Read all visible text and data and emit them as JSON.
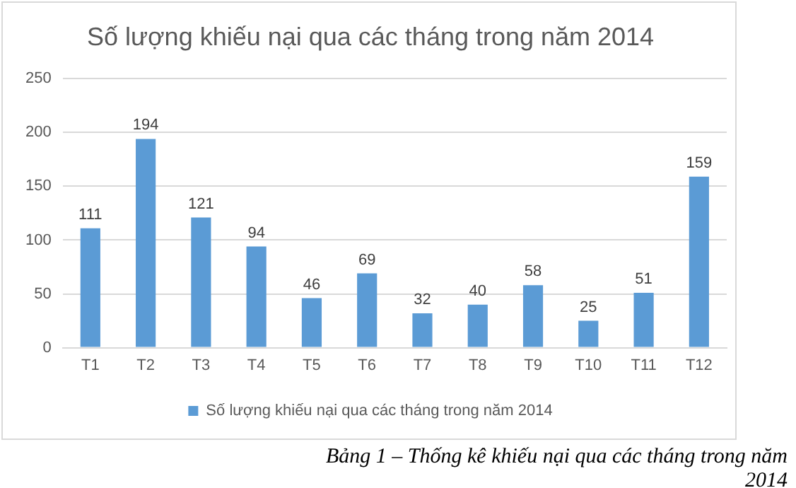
{
  "chart_data": {
    "type": "bar",
    "title": "Số lượng khiếu nại qua các tháng trong năm 2014",
    "categories": [
      "T1",
      "T2",
      "T3",
      "T4",
      "T5",
      "T6",
      "T7",
      "T8",
      "T9",
      "T10",
      "T11",
      "T12"
    ],
    "series": [
      {
        "name": "Số lượng khiếu nại qua các tháng trong năm 2014",
        "color": "#5b9bd5",
        "values": [
          111,
          194,
          121,
          94,
          46,
          69,
          32,
          40,
          58,
          25,
          51,
          159
        ]
      }
    ],
    "ylim": [
      0,
      250
    ],
    "yticks": [
      0,
      50,
      100,
      150,
      200,
      250
    ],
    "grid": "y",
    "legend": "bottom",
    "data_labels": true,
    "annotations": [
      "Bảng 1 – Thống kê khiếu nại qua các tháng trong năm 2014"
    ]
  }
}
